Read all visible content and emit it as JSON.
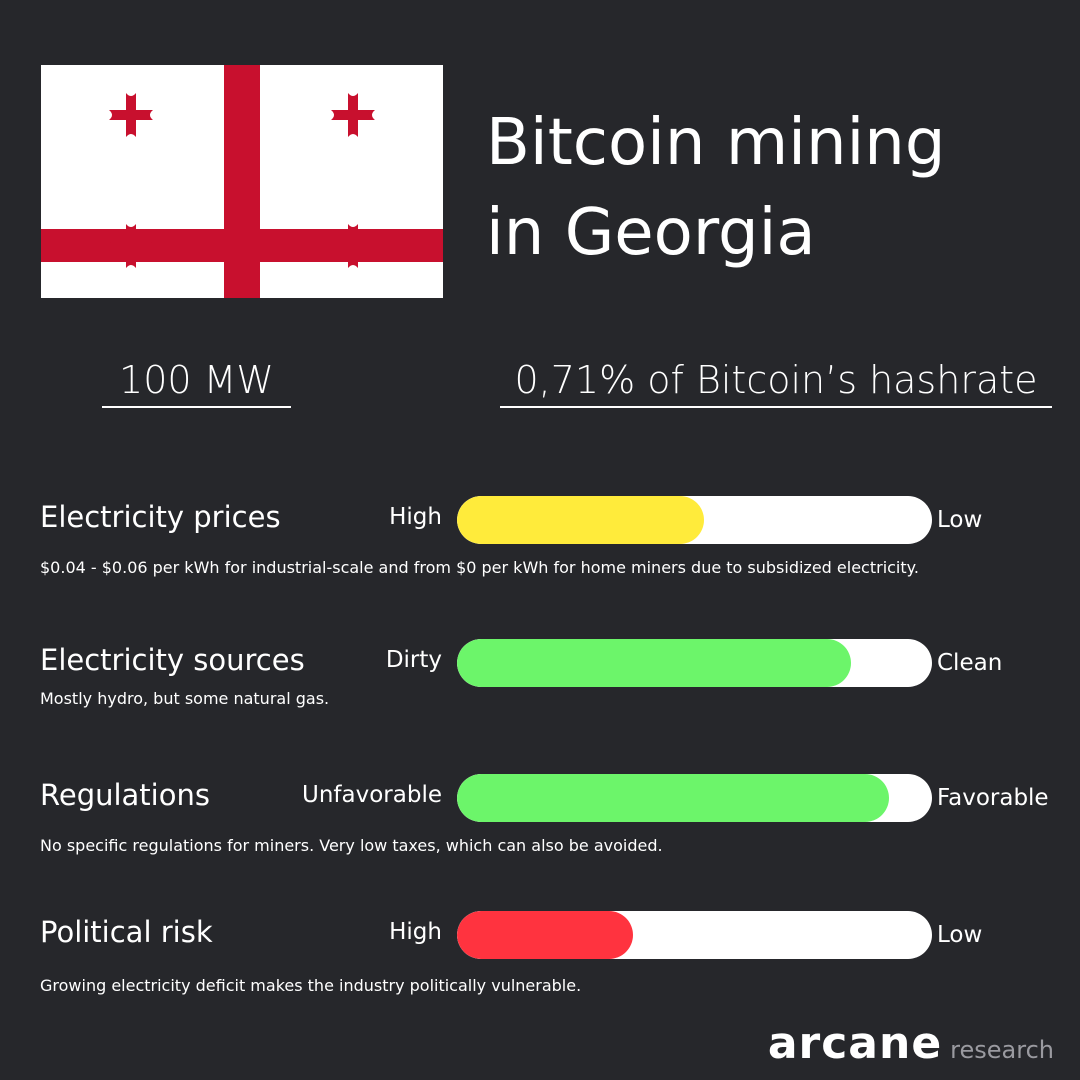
{
  "title": {
    "line1": "Bitcoin mining",
    "line2": "in Georgia"
  },
  "flag": {
    "name": "georgia-flag",
    "colors": {
      "background": "#ffffff",
      "cross": "#c8102e"
    }
  },
  "stats": {
    "power": "100 MW",
    "hashrate_share": "0,71% of Bitcoin’s hashrate"
  },
  "metrics": [
    {
      "label": "Electricity prices",
      "left_label": "High",
      "right_label": "Low",
      "level": 0.52,
      "color": "#ffeb3b",
      "description": "$0.04 - $0.06 per kWh for industrial-scale and from $0 per kWh for home miners due to subsidized electricity."
    },
    {
      "label": "Electricity sources",
      "left_label": "Dirty",
      "right_label": "Clean",
      "level": 0.83,
      "color": "#6cf56a",
      "description": "Mostly hydro, but some natural gas."
    },
    {
      "label": "Regulations",
      "left_label": "Unfavorable",
      "right_label": "Favorable",
      "level": 0.91,
      "color": "#6cf56a",
      "description": "No specific regulations for miners. Very low taxes, which can also be avoided."
    },
    {
      "label": "Political risk",
      "left_label": "High",
      "right_label": "Low",
      "level": 0.37,
      "color": "#ff333f",
      "description": "Growing electricity deficit makes the industry politically vulnerable."
    }
  ],
  "logo": {
    "main": "arcane",
    "sub": "research"
  }
}
